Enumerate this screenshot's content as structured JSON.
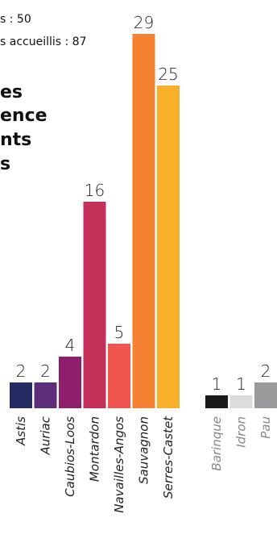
{
  "chart_data": [
    {
      "type": "bar",
      "notes": [
        "s : 50",
        "s accueillis : 87"
      ],
      "title": [
        "es",
        "ence",
        "nts",
        "s"
      ],
      "categories": [
        "Astis",
        "Auriac",
        "Caubios-Loos",
        "Montardon",
        "Navailles-Angos",
        "Sauvagnon",
        "Serres-Castet"
      ],
      "values": [
        2,
        2,
        4,
        16,
        5,
        29,
        25
      ],
      "colors": [
        "#252a63",
        "#5e2d7a",
        "#8d1f6c",
        "#c4305a",
        "#f05650",
        "#f58232",
        "#f8b02a"
      ],
      "label_color": "#222"
    },
    {
      "type": "bar",
      "categories": [
        "Barinque",
        "Idron",
        "Pau"
      ],
      "values": [
        1,
        1,
        2
      ],
      "colors": [
        "#1d1a1b",
        "#dcdcdc",
        "#9a9a9c"
      ],
      "label_color": "#888"
    }
  ]
}
